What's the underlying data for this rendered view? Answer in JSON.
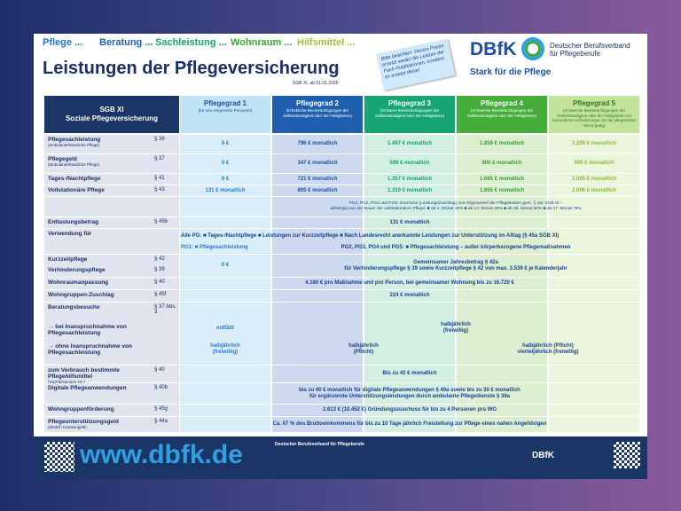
{
  "header": {
    "tagline": [
      "Pflege ...",
      "Beratung ...",
      "Sachleistung ...",
      "Wohnraum ...",
      "Hilfsmittel ..."
    ],
    "title": "Leistungen der Pflegeversicherung",
    "subtitle": "SGB XI, ab 01.01.2025",
    "sticker": "Bitte beachten: Dieses Poster ersetzt weder die Lektüre der Fach-Publikationen, sondern es ersetzt diese!",
    "logo": {
      "name": "DBfK",
      "line1": "Deutscher Berufsverband",
      "line2": "für Pflegeberufe",
      "slogan": "Stark für die Pflege"
    }
  },
  "table": {
    "corner": [
      "SGB XI",
      "Soziale Pflegeversicherung"
    ],
    "columns": [
      {
        "title": "Pflegegrad 1",
        "note": "(für neu eingestufte Personen)"
      },
      {
        "title": "Pflegegrad 2",
        "note": "(Erhebliche Beeinträchtigungen der Selbstständigkeit oder der Fähigkeiten)"
      },
      {
        "title": "Pflegegrad 3",
        "note": "(Schwere Beeinträchtigungen der Selbstständigkeit oder der Fähigkeiten)"
      },
      {
        "title": "Pflegegrad 4",
        "note": "(Schwerste Beeinträchtigungen der Selbstständigkeit oder der Fähigkeiten)"
      },
      {
        "title": "Pflegegrad 5",
        "note": "(Schwerste Beeinträchtigungen der Selbstständigkeit oder der Fähigkeiten mit besonderen Anforderungen an die pflegerische Versorgung)"
      }
    ],
    "rows": [
      {
        "label": "Pflegesachleistung",
        "sub": "(ambulante/häusliche Pflege)",
        "para": "§ 36",
        "cells": [
          "0 €",
          "796 € monatlich",
          "1.497 € monatlich",
          "1.859 € monatlich",
          "2.299 € monatlich"
        ]
      },
      {
        "label": "Pflegegeld",
        "sub": "(ambulante/häusliche Pflege)",
        "para": "§ 37",
        "cells": [
          "0 €",
          "347 € monatlich",
          "599 € monatlich",
          "800 € monatlich",
          "990 € monatlich"
        ]
      },
      {
        "label": "Tages-/Nachtpflege",
        "para": "§ 41",
        "cells": [
          "0 €",
          "721 € monatlich",
          "1.357 € monatlich",
          "1.685 € monatlich",
          "2.085 € monatlich"
        ]
      },
      {
        "label": "Vollstationäre Pflege",
        "para": "§ 43",
        "cells": [
          "131 € monatlich",
          "805 € monatlich",
          "1.319 € monatlich",
          "1.855 € monatlich",
          "2.096 € monatlich"
        ]
      },
      {
        "span": [
          "PG2, PG3, PG4 und PG5: Zuschuss (Leistungszuschlag) zum Eigenanteil der Pflegekosten gem. § 43c SGB XI –",
          "abhängig von der Dauer der vollstationären Pflege: ■ ab 1. Monat 15% ■ ab 13. Monat 30% ■ ab 25. Monat 50% ■ ab 37. Monat 75%"
        ]
      },
      {
        "label": "Entlastungsbetrag",
        "para": "§ 45b",
        "span": [
          "131 € monatlich"
        ]
      },
      {
        "label": "Verwendung für",
        "all": "Alle PG: ■ Tages-/Nachtpflege ■ Leistungen zur Kurzzeitpflege ■ Nach Landesrecht anerkannte Leistungen zur Unterstützung im Alltag (§ 45a SGB XI)",
        "pg1": "PG1: ■ Pflegesachleistung",
        "span": [
          "PG2, PG3, PG4 und PG5: ■ Pflegesachleistung – außer körperbezogene Pflegemaßnahmen"
        ]
      },
      {
        "label": "Kurzzeitpflege",
        "para": "§ 42",
        "label2": "Verhinderungspflege",
        "para2": "§ 39",
        "pg1": "0 €",
        "span": [
          "Gemeinsamer Jahresbetrag § 42a",
          "für Verhinderungspflege § 39 sowie Kurzzeitpflege § 42 von max. 3.539 € je Kalenderjahr"
        ]
      },
      {
        "label": "Wohnraumanpassung",
        "para": "§ 40",
        "span": [
          "4.180 € pro Maßnahme und pro Person, bei gemeinsamer Wohnung bis zu 16.720 €"
        ]
      },
      {
        "label": "Wohngruppen-Zuschlag",
        "para": "§ 45f",
        "span": [
          "224 € monatlich"
        ]
      },
      {
        "label": "Beratungsbesuche",
        "para": "§ 37 Abs. 3",
        "with_label": "→ bei Inanspruchnahme von Pflegesachleistung",
        "with": {
          "pg1": "entfällt",
          "span": [
            "halbjährlich",
            "(freiwillig)"
          ]
        },
        "without_label": "→ ohne Inanspruchnahme von Pflegesachleistung",
        "without": {
          "pg1": [
            "halbjährlich",
            "(freiwillig)"
          ],
          "pg23": [
            "halbjährlich",
            "(Pflicht)"
          ],
          "pg45": [
            "halbjährlich (Pflicht)",
            "vierteljährlich (freiwillig)"
          ]
        }
      },
      {
        "label": "zum Verbrauch bestimmte Pflegehilfsmittel",
        "sub": "(Sachleistungen etc.)",
        "para": "§ 40",
        "span": [
          "Bis zu 42 € monatlich"
        ]
      },
      {
        "label": "Digitale Pflegeanwendungen",
        "para": "§ 40b",
        "span": [
          "bis zu 40 € monatlich für digitale Pflegeanwendungen § 40a sowie bis zu 30 € monatlich",
          "für ergänzende Unterstützungsleistungen durch ambulante Pflegedienste § 39a"
        ]
      },
      {
        "label": "Wohngruppenförderung",
        "para": "§ 45g",
        "span": [
          "2.613 € (10.452 €) Gründungszuschuss für bis zu 4 Personen pro WG"
        ]
      },
      {
        "label": "Pflegeunterstützungsgeld",
        "sub": "(ähnlich Krankengeld)",
        "para": "§ 44a",
        "span": [
          "Ca. 67 % des Bruttoeinkommens für bis zu 10 Tage jährlich Freistellung zur Pflege eines nahen Angehörigen"
        ]
      }
    ]
  },
  "footer": {
    "url": "www.dbfk.de",
    "org": "Deutscher Berufsverband für Pflegeberufe"
  }
}
